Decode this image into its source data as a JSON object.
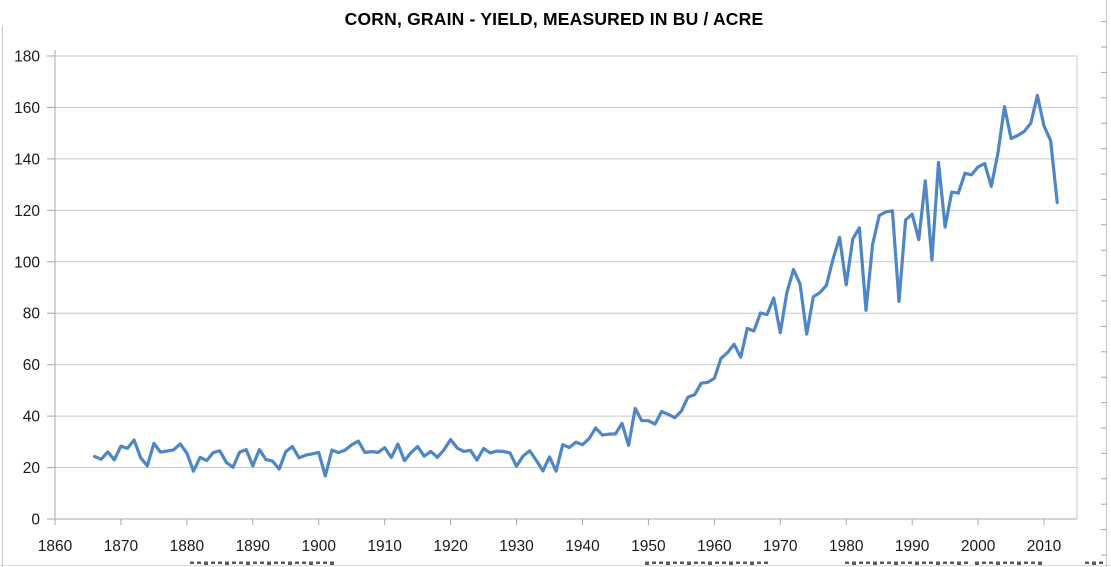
{
  "title": "CORN, GRAIN - YIELD, MEASURED IN BU / ACRE",
  "chart_data": {
    "type": "line",
    "title": "CORN, GRAIN - YIELD, MEASURED IN BU / ACRE",
    "xlabel": "",
    "ylabel": "",
    "xlim": [
      1860,
      2015
    ],
    "ylim": [
      0,
      180
    ],
    "x_ticks": [
      1860,
      1870,
      1880,
      1890,
      1900,
      1910,
      1920,
      1930,
      1940,
      1950,
      1960,
      1970,
      1980,
      1990,
      2000,
      2010
    ],
    "y_ticks": [
      0,
      20,
      40,
      60,
      80,
      100,
      120,
      140,
      160,
      180
    ],
    "grid": true,
    "legend": false,
    "series": [
      {
        "name": "Corn grain yield (bu/acre)",
        "x": [
          1866,
          1867,
          1868,
          1869,
          1870,
          1871,
          1872,
          1873,
          1874,
          1875,
          1876,
          1877,
          1878,
          1879,
          1880,
          1881,
          1882,
          1883,
          1884,
          1885,
          1886,
          1887,
          1888,
          1889,
          1890,
          1891,
          1892,
          1893,
          1894,
          1895,
          1896,
          1897,
          1898,
          1899,
          1900,
          1901,
          1902,
          1903,
          1904,
          1905,
          1906,
          1907,
          1908,
          1909,
          1910,
          1911,
          1912,
          1913,
          1914,
          1915,
          1916,
          1917,
          1918,
          1919,
          1920,
          1921,
          1922,
          1923,
          1924,
          1925,
          1926,
          1927,
          1928,
          1929,
          1930,
          1931,
          1932,
          1933,
          1934,
          1935,
          1936,
          1937,
          1938,
          1939,
          1940,
          1941,
          1942,
          1943,
          1944,
          1945,
          1946,
          1947,
          1948,
          1949,
          1950,
          1951,
          1952,
          1953,
          1954,
          1955,
          1956,
          1957,
          1958,
          1959,
          1960,
          1961,
          1962,
          1963,
          1964,
          1965,
          1966,
          1967,
          1968,
          1969,
          1970,
          1971,
          1972,
          1973,
          1974,
          1975,
          1976,
          1977,
          1978,
          1979,
          1980,
          1981,
          1982,
          1983,
          1984,
          1985,
          1986,
          1987,
          1988,
          1989,
          1990,
          1991,
          1992,
          1993,
          1994,
          1995,
          1996,
          1997,
          1998,
          1999,
          2000,
          2001,
          2002,
          2003,
          2004,
          2005,
          2006,
          2007,
          2008,
          2009,
          2010,
          2011,
          2012
        ],
        "y": [
          24.3,
          23.2,
          26.1,
          23.0,
          28.3,
          27.5,
          30.7,
          23.8,
          20.7,
          29.4,
          26.0,
          26.4,
          26.9,
          29.2,
          25.6,
          18.6,
          24.0,
          22.7,
          25.8,
          26.5,
          22.0,
          20.1,
          26.0,
          27.0,
          20.7,
          27.0,
          23.1,
          22.5,
          19.4,
          26.2,
          28.2,
          23.8,
          24.8,
          25.3,
          25.9,
          16.7,
          26.8,
          25.8,
          26.8,
          28.8,
          30.3,
          25.9,
          26.2,
          25.9,
          27.7,
          23.9,
          29.1,
          22.7,
          25.8,
          28.2,
          24.4,
          26.3,
          24.0,
          26.9,
          30.9,
          27.6,
          26.3,
          26.7,
          22.9,
          27.4,
          25.7,
          26.4,
          26.3,
          25.7,
          20.5,
          24.5,
          26.5,
          22.8,
          18.7,
          24.2,
          18.6,
          28.9,
          27.8,
          29.9,
          28.9,
          31.2,
          35.4,
          32.6,
          33.0,
          33.1,
          37.2,
          28.6,
          43.0,
          38.2,
          38.2,
          36.9,
          41.8,
          40.7,
          39.4,
          42.0,
          47.4,
          48.3,
          52.8,
          53.1,
          54.7,
          62.4,
          64.7,
          67.9,
          62.9,
          74.1,
          73.1,
          80.1,
          79.5,
          85.9,
          72.4,
          88.1,
          97.0,
          91.3,
          71.9,
          86.4,
          88.0,
          90.8,
          101.0,
          109.5,
          91.0,
          108.9,
          113.2,
          81.1,
          106.7,
          118.0,
          119.4,
          119.8,
          84.6,
          116.3,
          118.5,
          108.6,
          131.5,
          100.7,
          138.6,
          113.5,
          127.1,
          126.7,
          134.4,
          133.8,
          136.9,
          138.2,
          129.3,
          142.2,
          160.3,
          147.9,
          149.1,
          150.7,
          153.9,
          164.7,
          152.8,
          147.2,
          123.1
        ]
      }
    ],
    "colors": {
      "line": "#4f86c6",
      "gridline": "#c9c9c9",
      "axis": "#aaaaaa",
      "tick": "#a6a6a6",
      "label": "#1a1a1a",
      "title": "#000000",
      "edge_artifact": "#c6c6c6",
      "clipped_text_fragment": "#3c3c3c"
    }
  }
}
